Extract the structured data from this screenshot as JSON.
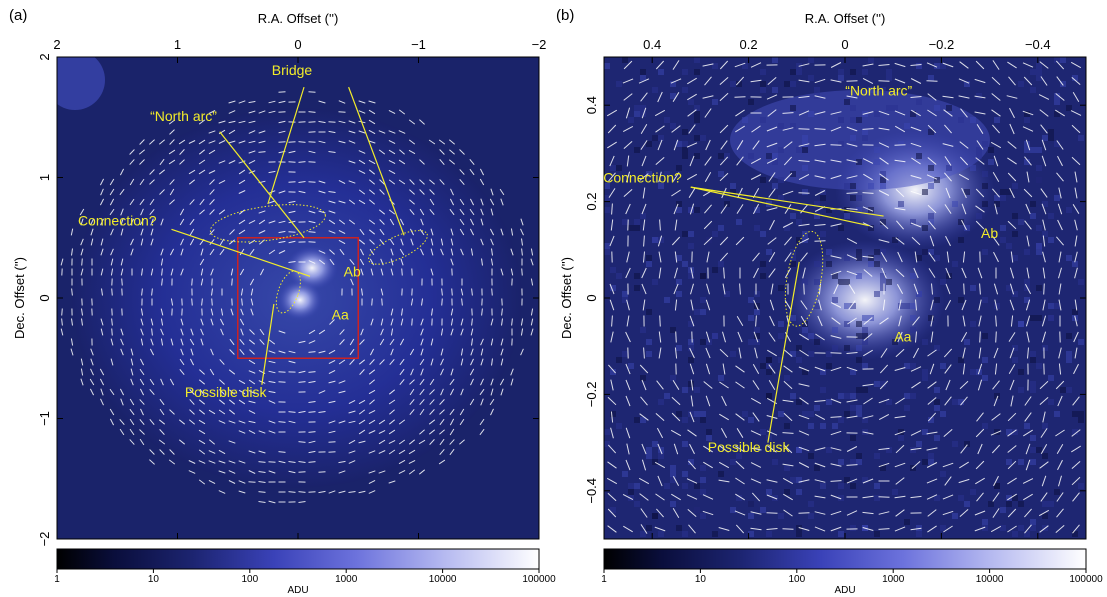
{
  "chart_data": [
    {
      "panel_label": "(a)",
      "type": "heatmap",
      "xlabel": "R.A. Offset ('')",
      "ylabel": "Dec. Offset ('')",
      "xlim": [
        2,
        -2
      ],
      "ylim": [
        -2,
        2
      ],
      "xticks": [
        2,
        1,
        0,
        -1,
        -2
      ],
      "yticks": [
        -2,
        -1,
        0,
        1,
        2
      ],
      "xtick_labels": [
        "2",
        "1",
        "0",
        "−1",
        "−2"
      ],
      "ytick_labels": [
        "−2",
        "−1",
        "0",
        "1",
        "2"
      ],
      "colorbar": {
        "label": "ADU",
        "scale": "log",
        "range": [
          1,
          100000
        ],
        "ticks": [
          "1",
          "10",
          "100",
          "1000",
          "10000",
          "100000"
        ]
      },
      "annotations": [
        {
          "text": "Bridge",
          "x": 0.05,
          "y": 1.85
        },
        {
          "text": "“North arc”",
          "x": 0.95,
          "y": 1.47
        },
        {
          "text": "Connection?",
          "x": 1.5,
          "y": 0.6
        },
        {
          "text": "Ab",
          "x": -0.45,
          "y": 0.18
        },
        {
          "text": "Aa",
          "x": -0.35,
          "y": -0.18
        },
        {
          "text": "Possible disk",
          "x": 0.6,
          "y": -0.82
        }
      ],
      "zoom_box": {
        "x": [
          0.5,
          -0.5
        ],
        "y": [
          -0.5,
          0.5
        ],
        "color": "#cc2222"
      }
    },
    {
      "panel_label": "(b)",
      "type": "heatmap",
      "xlabel": "R.A. Offset ('')",
      "ylabel": "Dec. Offset ('')",
      "xlim": [
        0.5,
        -0.5
      ],
      "ylim": [
        -0.5,
        0.5
      ],
      "xticks": [
        0.4,
        0.2,
        0,
        -0.2,
        -0.4
      ],
      "yticks": [
        -0.4,
        -0.2,
        0,
        0.2,
        0.4
      ],
      "xtick_labels": [
        "0.4",
        "0.2",
        "0",
        "−0.2",
        "−0.4"
      ],
      "ytick_labels": [
        "−0.4",
        "−0.2",
        "0",
        "0.2",
        "0.4"
      ],
      "colorbar": {
        "label": "ADU",
        "scale": "log",
        "range": [
          1,
          100000
        ],
        "ticks": [
          "1",
          "10",
          "100",
          "1000",
          "10000",
          "100000"
        ]
      },
      "annotations": [
        {
          "text": "“North arc”",
          "x": -0.07,
          "y": 0.42
        },
        {
          "text": "Connection?",
          "x": 0.42,
          "y": 0.24
        },
        {
          "text": "Ab",
          "x": -0.3,
          "y": 0.125
        },
        {
          "text": "Aa",
          "x": -0.12,
          "y": -0.09
        },
        {
          "text": "Possible disk",
          "x": 0.2,
          "y": -0.32
        }
      ]
    }
  ],
  "colors": {
    "bg": "#1c2470",
    "annotation": "#f2ec2a",
    "vectors": "#ffffff",
    "zoom_box": "#cc2222"
  }
}
